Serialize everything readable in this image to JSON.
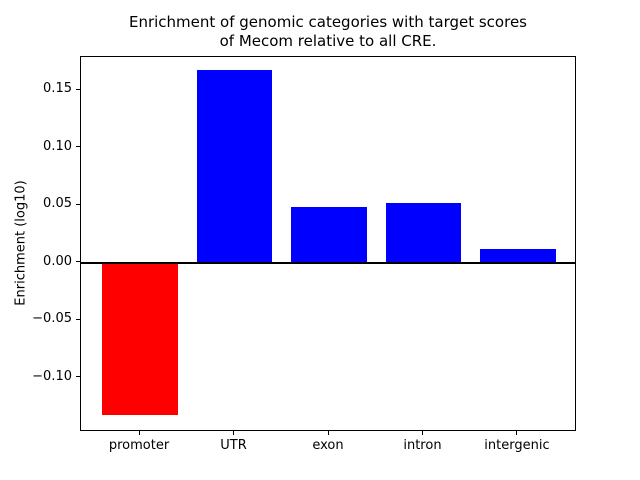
{
  "chart_data": {
    "type": "bar",
    "title_lines": [
      "Enrichment of genomic categories with target scores",
      "of Mecom relative to all CRE."
    ],
    "title": "Enrichment of genomic categories with target scores of Mecom relative to all CRE.",
    "categories": [
      "promoter",
      "UTR",
      "exon",
      "intron",
      "intergenic"
    ],
    "values": [
      -0.132,
      0.168,
      0.049,
      0.052,
      0.012
    ],
    "bar_colors": [
      "#ff0000",
      "#0000ff",
      "#0000ff",
      "#0000ff",
      "#0000ff"
    ],
    "xlabel": "",
    "ylabel": "Enrichment (log10)",
    "ylim": [
      -0.147,
      0.179
    ],
    "xlim": [
      -0.625,
      4.625
    ],
    "yticks": [
      -0.1,
      -0.05,
      0.0,
      0.05,
      0.1,
      0.15
    ],
    "bar_width_units": 0.8,
    "zero_line": true,
    "grid": false,
    "legend": null
  }
}
